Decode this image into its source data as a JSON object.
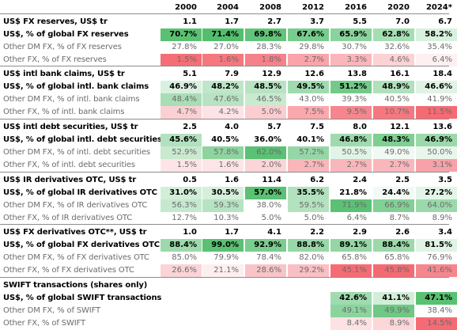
{
  "header": {
    "years": [
      "2000",
      "2004",
      "2008",
      "2012",
      "2016",
      "2020",
      "2024*"
    ]
  },
  "sections": [
    {
      "rows": [
        {
          "type": "sect",
          "label": "US$ FX reserves, US$ tr",
          "values": [
            "1.1",
            "1.7",
            "2.7",
            "3.7",
            "5.5",
            "7.0",
            "6.7"
          ],
          "colors": [
            "",
            "",
            "",
            "",
            "",
            "",
            ""
          ]
        },
        {
          "type": "us",
          "label": "US$, % of global FX reserves",
          "values": [
            "70.7%",
            "71.4%",
            "69.8%",
            "67.6%",
            "65.9%",
            "62.8%",
            "58.2%"
          ],
          "colors": [
            "#5ac173",
            "#53be6e",
            "#62c47a",
            "#78cc8d",
            "#8bd39d",
            "#a6deb4",
            "#d8f0de"
          ]
        },
        {
          "type": "dm",
          "label": "Other DM FX, % of FX reserves",
          "values": [
            "27.8%",
            "27.0%",
            "28.3%",
            "29.8%",
            "30.7%",
            "32.6%",
            "35.4%"
          ],
          "colors": [
            "#ffffff",
            "#ffffff",
            "#ffffff",
            "#ffffff",
            "#ffffff",
            "#ffffff",
            "#ffffff"
          ]
        },
        {
          "type": "oth",
          "label": "Other FX, % of FX reserves",
          "values": [
            "1.5%",
            "1.6%",
            "1.8%",
            "2.7%",
            "3.3%",
            "4.6%",
            "6.4%"
          ],
          "colors": [
            "#f56e76",
            "#f6777e",
            "#f6818a",
            "#f9a4aa",
            "#fab6ba",
            "#fcd2d5",
            "#fef0f1"
          ]
        }
      ]
    },
    {
      "rows": [
        {
          "type": "sect",
          "label": "US$ intl bank claims, US$ tr",
          "values": [
            "5.1",
            "7.9",
            "12.9",
            "12.6",
            "13.8",
            "16.1",
            "18.4"
          ],
          "colors": [
            "",
            "",
            "",
            "",
            "",
            "",
            ""
          ]
        },
        {
          "type": "us",
          "label": "US$, % of global intl. bank claims",
          "values": [
            "46.9%",
            "48.2%",
            "48.5%",
            "49.5%",
            "51.2%",
            "48.9%",
            "46.6%"
          ],
          "colors": [
            "#d9f0df",
            "#bfe6c9",
            "#b8e3c3",
            "#9fdbae",
            "#73ca88",
            "#b0e0bc",
            "#e0f3e5"
          ]
        },
        {
          "type": "dm",
          "label": "Other DM FX, % of intl. bank claims",
          "values": [
            "48.4%",
            "47.6%",
            "46.5%",
            "43.0%",
            "39.3%",
            "40.5%",
            "41.9%"
          ],
          "colors": [
            "#a9ddb6",
            "#b7e3c2",
            "#c9eacf",
            "#ffffff",
            "#ffffff",
            "#ffffff",
            "#ffffff"
          ]
        },
        {
          "type": "oth",
          "label": "Other FX, % of intl. bank claims",
          "values": [
            "4.7%",
            "4.2%",
            "5.0%",
            "7.5%",
            "9.5%",
            "10.7%",
            "11.5%"
          ],
          "colors": [
            "#fbd0d3",
            "#fde3e5",
            "#fbcdd0",
            "#f9a9ae",
            "#f6868d",
            "#f57880",
            "#f46b74"
          ]
        }
      ]
    },
    {
      "rows": [
        {
          "type": "sect",
          "label": "US$ intl debt securities, US$ tr",
          "values": [
            "2.5",
            "4.0",
            "5.7",
            "7.5",
            "8.0",
            "12.1",
            "13.6"
          ],
          "colors": [
            "",
            "",
            "",
            "",
            "",
            "",
            ""
          ]
        },
        {
          "type": "us",
          "label": "US$, % of global intl. debt securities",
          "values": [
            "45.6%",
            "40.5%",
            "36.0%",
            "40.1%",
            "46.8%",
            "48.3%",
            "46.9%"
          ],
          "colors": [
            "#b3e1bf",
            "#ffffff",
            "#ffffff",
            "#ffffff",
            "#9fdaae",
            "#7ecf91",
            "#9bd9aa"
          ]
        },
        {
          "type": "dm",
          "label": "Other DM FX, % of intl. debt securities",
          "values": [
            "52.9%",
            "57.8%",
            "62.0%",
            "57.2%",
            "50.5%",
            "49.0%",
            "50.0%"
          ],
          "colors": [
            "#c9eacf",
            "#8dd49f",
            "#5bc174",
            "#95d7a6",
            "#e2f4e7",
            "#f1f9f3",
            "#e8f6ec"
          ]
        },
        {
          "type": "oth",
          "label": "Other FX, % of intl. debt securities",
          "values": [
            "1.5%",
            "1.6%",
            "2.0%",
            "2.7%",
            "2.7%",
            "2.7%",
            "3.1%"
          ],
          "colors": [
            "#fde5e7",
            "#fde5e7",
            "#fbd5d8",
            "#f9b7bb",
            "#f9b7bb",
            "#f9b7bb",
            "#f7a2a8"
          ]
        }
      ]
    },
    {
      "rows": [
        {
          "type": "sect",
          "label": "US$ IR derivatives OTC, US$ tr",
          "values": [
            "0.5",
            "1.6",
            "11.4",
            "6.2",
            "2.4",
            "2.5",
            "3.5"
          ],
          "colors": [
            "",
            "",
            "",
            "",
            "",
            "",
            ""
          ]
        },
        {
          "type": "us",
          "label": "US$, % of global IR derivatives OTC",
          "values": [
            "31.0%",
            "30.5%",
            "57.0%",
            "35.5%",
            "21.8%",
            "24.4%",
            "27.2%"
          ],
          "colors": [
            "#d2eed9",
            "#d5efdb",
            "#5bc174",
            "#b3e1bf",
            "#ffffff",
            "#f2faf4",
            "#e3f5e8"
          ]
        },
        {
          "type": "dm",
          "label": "Other DM FX, % of IR derivatives OTC",
          "values": [
            "56.3%",
            "59.3%",
            "38.0%",
            "59.5%",
            "71.9%",
            "66.9%",
            "64.0%"
          ],
          "colors": [
            "#c5e9ce",
            "#b6e3c1",
            "#ffffff",
            "#b4e2bf",
            "#5bc174",
            "#82d095",
            "#9bd9aa"
          ]
        },
        {
          "type": "oth",
          "label": "Other FX, % of IR derivatives OTC",
          "values": [
            "12.7%",
            "10.3%",
            "5.0%",
            "5.0%",
            "6.4%",
            "8.7%",
            "8.9%"
          ],
          "colors": [
            "#ffffff",
            "#ffffff",
            "#ffffff",
            "#ffffff",
            "#ffffff",
            "#ffffff",
            "#ffffff"
          ]
        }
      ]
    },
    {
      "rows": [
        {
          "type": "sect",
          "label": "US$ FX derivatives OTC**, US$ tr",
          "values": [
            "1.0",
            "1.7",
            "4.1",
            "2.2",
            "2.9",
            "2.6",
            "3.4"
          ],
          "colors": [
            "",
            "",
            "",
            "",
            "",
            "",
            ""
          ]
        },
        {
          "type": "us",
          "label": "US$, % of global FX derivatives OTC",
          "values": [
            "88.4%",
            "99.0%",
            "92.9%",
            "88.8%",
            "89.1%",
            "88.4%",
            "81.5%"
          ],
          "colors": [
            "#9cd9ab",
            "#5ac173",
            "#7acd8e",
            "#98d7a8",
            "#94d6a4",
            "#9cd9ab",
            "#e0f3e5"
          ]
        },
        {
          "type": "dm",
          "label": "Other DM FX, % of FX derivatives OTC",
          "values": [
            "85.0%",
            "79.9%",
            "78.4%",
            "82.0%",
            "65.8%",
            "65.8%",
            "76.9%"
          ],
          "colors": [
            "#ffffff",
            "#ffffff",
            "#ffffff",
            "#ffffff",
            "#ffffff",
            "#ffffff",
            "#ffffff"
          ]
        },
        {
          "type": "oth",
          "label": "Other FX, % of FX derivatives OTC",
          "values": [
            "26.6%",
            "21.1%",
            "28.6%",
            "29.2%",
            "45.1%",
            "45.8%",
            "41.6%"
          ],
          "colors": [
            "#fad4d7",
            "#fdeff0",
            "#f9c4c8",
            "#f9c0c4",
            "#f56c75",
            "#f46a73",
            "#f6868d"
          ]
        }
      ]
    },
    {
      "rows": [
        {
          "type": "sect",
          "label": "SWIFT transactions (shares only)",
          "values": [
            "",
            "",
            "",
            "",
            "",
            "",
            ""
          ],
          "colors": [
            "",
            "",
            "",
            "",
            "",
            "",
            ""
          ]
        },
        {
          "type": "us",
          "label": "US$, % of global SWIFT transactions",
          "values": [
            "",
            "",
            "",
            "",
            "42.6%",
            "41.1%",
            "47.1%"
          ],
          "colors": [
            "",
            "",
            "",
            "",
            "#9fdbae",
            "#d2eed9",
            "#5ac173"
          ]
        },
        {
          "type": "dm",
          "label": "Other DM FX, % of SWIFT",
          "values": [
            "",
            "",
            "",
            "",
            "49.1%",
            "49.9%",
            "38.4%"
          ],
          "colors": [
            "",
            "",
            "",
            "",
            "#8cd49e",
            "#6fc885",
            "#fdfefd"
          ]
        },
        {
          "type": "oth",
          "label": "Other FX, % of SWIFT",
          "values": [
            "",
            "",
            "",
            "",
            "8.4%",
            "8.9%",
            "14.5%"
          ],
          "colors": [
            "",
            "",
            "",
            "",
            "#fde2e4",
            "#fcd6d9",
            "#f46b74"
          ]
        }
      ]
    }
  ]
}
